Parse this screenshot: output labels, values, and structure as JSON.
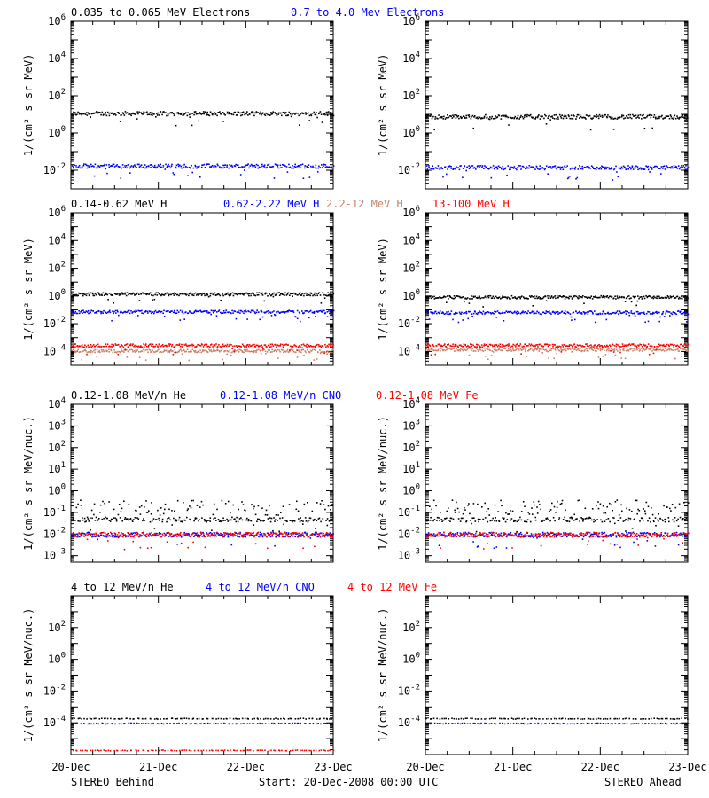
{
  "rows": [
    {
      "legend": [
        {
          "text": "0.035 to 0.065 MeV Electrons",
          "color": "#000000"
        },
        {
          "text": "0.7 to 4.0 Mev Electrons",
          "color": "#0000ff"
        }
      ],
      "ylabel": "1/(cm² s sr MeV)"
    },
    {
      "legend": [
        {
          "text": "0.14-0.62 MeV H",
          "color": "#000000"
        },
        {
          "text": "0.62-2.22 MeV H",
          "color": "#0000ff"
        },
        {
          "text": "2.2-12 MeV H",
          "color": "#c8826a"
        },
        {
          "text": "13-100 MeV H",
          "color": "#ff0000"
        }
      ],
      "ylabel": "1/(cm² s sr MeV)"
    },
    {
      "legend": [
        {
          "text": "0.12-1.08 MeV/n He",
          "color": "#000000"
        },
        {
          "text": "0.12-1.08 MeV/n CNO",
          "color": "#0000ff"
        },
        {
          "text": "0.12-1.08 MeV Fe",
          "color": "#ff0000"
        }
      ],
      "ylabel": "1/(cm² s sr MeV/nuc.)"
    },
    {
      "legend": [
        {
          "text": "4 to 12 MeV/n He",
          "color": "#000000"
        },
        {
          "text": "4 to 12 MeV/n CNO",
          "color": "#0000ff"
        },
        {
          "text": "4 to 12 MeV Fe",
          "color": "#ff0000"
        }
      ],
      "ylabel": "1/(cm² s sr MeV/nuc.)"
    }
  ],
  "x_tick_labels": [
    "20-Dec",
    "21-Dec",
    "22-Dec",
    "23-Dec"
  ],
  "footer": {
    "left": "STEREO Behind",
    "center": "Start: 20-Dec-2008 00:00 UTC",
    "right": "STEREO Ahead"
  },
  "chart_data": [
    {
      "row": 0,
      "spacecraft": "STEREO Behind",
      "type": "scatter",
      "yscale": "log",
      "ylim": [
        0.001,
        1000000
      ],
      "ytick_exponents": [
        -2,
        0,
        2,
        4,
        6
      ],
      "xlim": [
        "2008-12-20",
        "2008-12-23"
      ],
      "series": [
        {
          "color": "#000000",
          "level": 12
        },
        {
          "color": "#0000ff",
          "level": 0.018
        }
      ]
    },
    {
      "row": 0,
      "spacecraft": "STEREO Ahead",
      "type": "scatter",
      "yscale": "log",
      "ylim": [
        0.001,
        1000000
      ],
      "ytick_exponents": [
        -2,
        0,
        2,
        4,
        6
      ],
      "xlim": [
        "2008-12-20",
        "2008-12-23"
      ],
      "series": [
        {
          "color": "#000000",
          "level": 8
        },
        {
          "color": "#0000ff",
          "level": 0.015
        }
      ]
    },
    {
      "row": 1,
      "spacecraft": "STEREO Behind",
      "type": "scatter",
      "yscale": "log",
      "ylim": [
        1e-05,
        1000000
      ],
      "ytick_exponents": [
        -4,
        -2,
        0,
        2,
        4,
        6
      ],
      "xlim": [
        "2008-12-20",
        "2008-12-23"
      ],
      "series": [
        {
          "color": "#000000",
          "level": 1.5
        },
        {
          "color": "#0000ff",
          "level": 0.08
        },
        {
          "color": "#c8826a",
          "level": 0.00012
        },
        {
          "color": "#ff0000",
          "level": 0.0003
        }
      ]
    },
    {
      "row": 1,
      "spacecraft": "STEREO Ahead",
      "type": "scatter",
      "yscale": "log",
      "ylim": [
        1e-05,
        1000000
      ],
      "ytick_exponents": [
        -4,
        -2,
        0,
        2,
        4,
        6
      ],
      "xlim": [
        "2008-12-20",
        "2008-12-23"
      ],
      "series": [
        {
          "color": "#000000",
          "level": 0.9
        },
        {
          "color": "#0000ff",
          "level": 0.07
        },
        {
          "color": "#c8826a",
          "level": 0.00015
        },
        {
          "color": "#ff0000",
          "level": 0.0003
        }
      ]
    },
    {
      "row": 2,
      "spacecraft": "STEREO Behind",
      "type": "scatter",
      "yscale": "log",
      "ylim": [
        0.0005,
        10000
      ],
      "ytick_exponents": [
        -3,
        -2,
        -1,
        0,
        1,
        2,
        3,
        4
      ],
      "xlim": [
        "2008-12-20",
        "2008-12-23"
      ],
      "series": [
        {
          "color": "#000000",
          "level": 0.05
        },
        {
          "color": "#0000ff",
          "level": 0.01
        },
        {
          "color": "#ff0000",
          "level": 0.01
        }
      ]
    },
    {
      "row": 2,
      "spacecraft": "STEREO Ahead",
      "type": "scatter",
      "yscale": "log",
      "ylim": [
        0.0005,
        10000
      ],
      "ytick_exponents": [
        -3,
        -2,
        -1,
        0,
        1,
        2,
        3,
        4
      ],
      "xlim": [
        "2008-12-20",
        "2008-12-23"
      ],
      "series": [
        {
          "color": "#000000",
          "level": 0.05
        },
        {
          "color": "#0000ff",
          "level": 0.01
        },
        {
          "color": "#ff0000",
          "level": 0.01
        }
      ]
    },
    {
      "row": 3,
      "spacecraft": "STEREO Behind",
      "type": "scatter",
      "yscale": "log",
      "ylim": [
        1e-06,
        10000
      ],
      "ytick_exponents": [
        -4,
        -2,
        0,
        2
      ],
      "xlim": [
        "2008-12-20",
        "2008-12-23"
      ],
      "series": [
        {
          "color": "#000000",
          "level": 0.0002
        },
        {
          "color": "#0000ff",
          "level": 0.0001
        },
        {
          "color": "#ff0000",
          "level": 2e-06
        }
      ]
    },
    {
      "row": 3,
      "spacecraft": "STEREO Ahead",
      "type": "scatter",
      "yscale": "log",
      "ylim": [
        1e-06,
        10000
      ],
      "ytick_exponents": [
        -4,
        -2,
        0,
        2
      ],
      "xlim": [
        "2008-12-20",
        "2008-12-23"
      ],
      "series": [
        {
          "color": "#000000",
          "level": 0.0002
        },
        {
          "color": "#0000ff",
          "level": 0.0001
        }
      ]
    }
  ]
}
